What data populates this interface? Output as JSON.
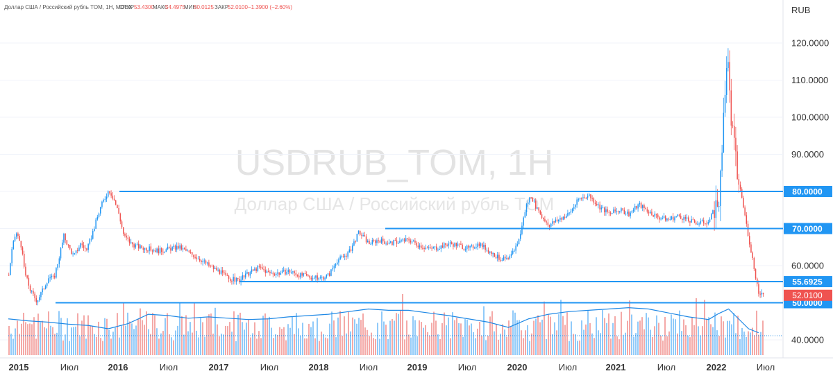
{
  "header": {
    "symbol": "Доллар США / Российский рубль TOM, 1H, MOEX",
    "open_label": "ОТКР",
    "open_value": "53.4300",
    "high_label": "МАКС",
    "high_value": "54.4975",
    "low_label": "МИН",
    "low_value": "50.0125",
    "close_label": "ЗАКР",
    "close_value": "52.0100",
    "change": "−1.3900 (−2.60%)"
  },
  "watermark": {
    "title": "USDRUB_TOM, 1H",
    "subtitle": "Доллар США / Российский рубль TOM"
  },
  "colors": {
    "up": "#2196f3",
    "down": "#ef5350",
    "level_line": "#2196f3",
    "level_label_bg": "#2196f3",
    "last_price_bg": "#ef5350",
    "volume_ma": "#1e88e5"
  },
  "chart_data": {
    "type": "line",
    "currency_label": "RUB",
    "x_ticks": [
      "2015",
      "Июл",
      "2016",
      "Июл",
      "2017",
      "Июл",
      "2018",
      "Июл",
      "2019",
      "Июл",
      "2020",
      "Июл",
      "2021",
      "Июл",
      "2022",
      "Июл"
    ],
    "y_ticks": [
      "40.0000",
      "60.0000",
      "70.0000",
      "80.0000",
      "90.0000",
      "100.0000",
      "110.0000",
      "120.0000"
    ],
    "ylim": [
      35,
      125
    ],
    "xlim": [
      2015.0,
      2022.55
    ],
    "horizontal_levels": [
      {
        "label": "80.0000",
        "value": 80.0
      },
      {
        "label": "70.0000",
        "value": 70.0
      },
      {
        "label": "55.6925",
        "value": 55.6925
      },
      {
        "label": "50.0000",
        "value": 50.0
      }
    ],
    "last_price": {
      "label": "52.0100",
      "value": 52.01
    },
    "price_series": {
      "name": "USDRUB_TOM",
      "x": [
        2015.0,
        2015.03,
        2015.07,
        2015.12,
        2015.16,
        2015.22,
        2015.28,
        2015.34,
        2015.4,
        2015.45,
        2015.5,
        2015.55,
        2015.6,
        2015.65,
        2015.72,
        2015.78,
        2015.85,
        2015.92,
        2016.0,
        2016.05,
        2016.1,
        2016.15,
        2016.22,
        2016.3,
        2016.4,
        2016.5,
        2016.6,
        2016.7,
        2016.8,
        2016.9,
        2017.0,
        2017.1,
        2017.2,
        2017.3,
        2017.4,
        2017.5,
        2017.6,
        2017.7,
        2017.8,
        2017.9,
        2018.0,
        2018.1,
        2018.2,
        2018.28,
        2018.32,
        2018.4,
        2018.5,
        2018.6,
        2018.7,
        2018.8,
        2018.9,
        2019.0,
        2019.1,
        2019.2,
        2019.3,
        2019.4,
        2019.5,
        2019.6,
        2019.7,
        2019.8,
        2019.9,
        2020.0,
        2020.1,
        2020.17,
        2020.22,
        2020.3,
        2020.4,
        2020.5,
        2020.6,
        2020.7,
        2020.8,
        2020.9,
        2021.0,
        2021.1,
        2021.2,
        2021.3,
        2021.4,
        2021.5,
        2021.6,
        2021.7,
        2021.8,
        2021.9,
        2022.0,
        2022.05,
        2022.1,
        2022.13,
        2022.18,
        2022.22,
        2022.28,
        2022.33,
        2022.38,
        2022.42,
        2022.46,
        2022.5
      ],
      "y": [
        57.5,
        64.0,
        69.0,
        66.0,
        58.0,
        53.0,
        50.5,
        53.5,
        57.0,
        56.5,
        62.0,
        68.0,
        65.0,
        62.5,
        66.0,
        64.0,
        70.0,
        76.0,
        80.5,
        78.0,
        74.0,
        68.0,
        66.0,
        65.0,
        64.5,
        64.0,
        64.5,
        65.0,
        63.5,
        62.0,
        60.0,
        58.5,
        56.5,
        56.0,
        58.0,
        59.5,
        58.0,
        58.0,
        58.5,
        57.5,
        57.0,
        56.5,
        57.5,
        61.5,
        62.0,
        63.5,
        69.0,
        66.0,
        67.0,
        66.0,
        66.5,
        67.0,
        65.5,
        64.5,
        65.0,
        66.0,
        65.5,
        64.5,
        66.0,
        64.0,
        62.0,
        61.5,
        67.0,
        76.0,
        79.0,
        74.0,
        71.0,
        72.5,
        74.0,
        78.0,
        79.0,
        76.0,
        74.0,
        75.0,
        74.0,
        76.5,
        74.5,
        73.0,
        72.5,
        73.5,
        72.0,
        71.5,
        72.0,
        75.0,
        78.0,
        90.0,
        118.0,
        100.0,
        85.0,
        78.0,
        70.0,
        64.0,
        58.0,
        52.01
      ]
    },
    "volume": {
      "ma_x": [
        2015.0,
        2015.2,
        2015.4,
        2015.6,
        2015.8,
        2016.0,
        2016.2,
        2016.4,
        2016.6,
        2016.8,
        2017.0,
        2017.2,
        2017.4,
        2017.6,
        2017.8,
        2018.0,
        2018.2,
        2018.4,
        2018.6,
        2018.8,
        2019.0,
        2019.2,
        2019.4,
        2019.6,
        2019.8,
        2020.0,
        2020.2,
        2020.4,
        2020.6,
        2020.8,
        2021.0,
        2021.2,
        2021.4,
        2021.6,
        2021.8,
        2022.0,
        2022.1,
        2022.2,
        2022.3,
        2022.4,
        2022.5
      ],
      "ma_y": [
        0.55,
        0.52,
        0.5,
        0.47,
        0.45,
        0.4,
        0.48,
        0.62,
        0.6,
        0.56,
        0.58,
        0.56,
        0.54,
        0.55,
        0.58,
        0.6,
        0.62,
        0.66,
        0.7,
        0.68,
        0.68,
        0.64,
        0.6,
        0.55,
        0.5,
        0.42,
        0.55,
        0.62,
        0.66,
        0.68,
        0.7,
        0.72,
        0.7,
        0.64,
        0.58,
        0.54,
        0.63,
        0.7,
        0.55,
        0.4,
        0.34
      ]
    }
  },
  "time_axis_bold": [
    true,
    false,
    true,
    false,
    true,
    false,
    true,
    false,
    true,
    false,
    true,
    false,
    true,
    false,
    true,
    false
  ]
}
